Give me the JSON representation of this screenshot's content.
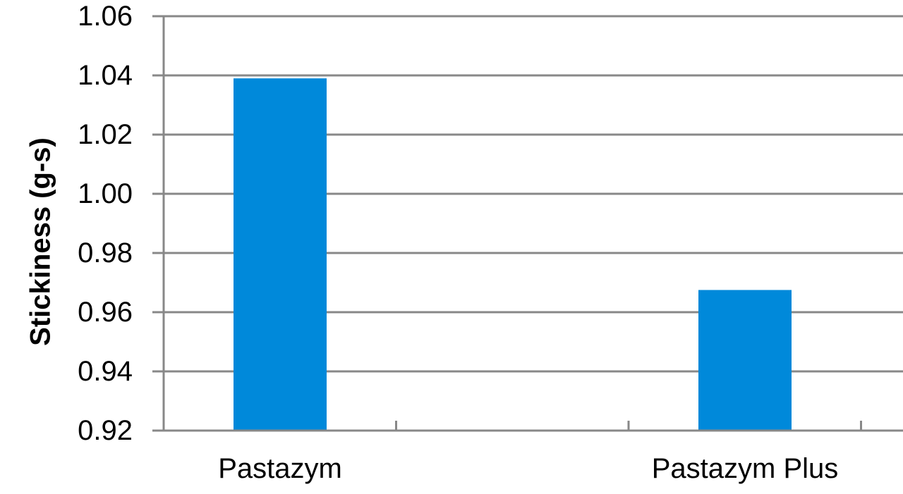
{
  "chart_data": {
    "type": "bar",
    "title": "",
    "xlabel": "",
    "ylabel": "Stickiness (g-s)",
    "categories": [
      "Pastazym",
      "Pastazym Plus"
    ],
    "values": [
      1.039,
      0.9675
    ],
    "ylim": [
      0.92,
      1.06
    ],
    "yticks": [
      "0.92",
      "0.94",
      "0.96",
      "0.98",
      "1.00",
      "1.02",
      "1.04",
      "1.06"
    ],
    "grid": true,
    "legend": "none",
    "bar_color": "#0089DA",
    "grid_color": "#888888"
  }
}
